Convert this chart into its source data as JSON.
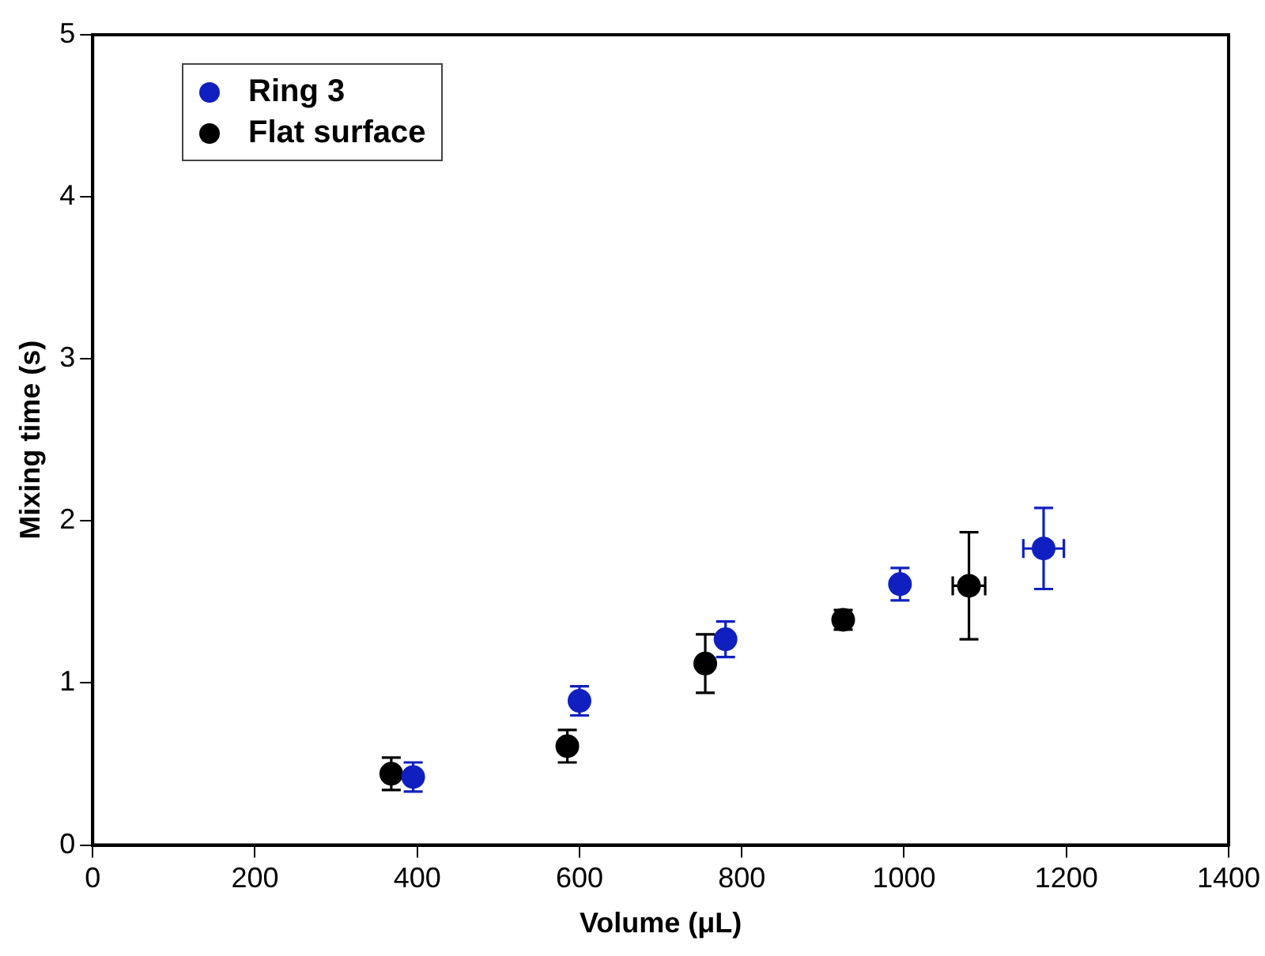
{
  "chart_data": {
    "type": "scatter",
    "xlabel": "Volume (μL)",
    "ylabel": "Mixing time (s)",
    "xlim": [
      0,
      1400
    ],
    "xticks": [
      0,
      200,
      400,
      600,
      800,
      1000,
      1200,
      1400
    ],
    "ylim": [
      0,
      5
    ],
    "yticks": [
      0,
      1,
      2,
      3,
      4,
      5
    ],
    "grid": false,
    "legend": "top left",
    "marker": "circle",
    "series": [
      {
        "name": "Ring 3",
        "color": "#1020c0",
        "x": [
          395,
          600,
          780,
          995,
          1172
        ],
        "values": [
          0.42,
          0.89,
          1.27,
          1.61,
          1.83
        ],
        "errors": [
          0.09,
          0.09,
          0.11,
          0.1,
          0.25
        ],
        "xerrors": [
          null,
          null,
          null,
          null,
          25
        ]
      },
      {
        "name": "Flat surface",
        "color": "#000000",
        "x": [
          368,
          585,
          755,
          925,
          1080
        ],
        "values": [
          0.44,
          0.61,
          1.12,
          1.39,
          1.6
        ],
        "errors": [
          0.1,
          0.1,
          0.18,
          0.06,
          0.33
        ],
        "xerrors": [
          null,
          null,
          null,
          null,
          20
        ]
      }
    ]
  }
}
